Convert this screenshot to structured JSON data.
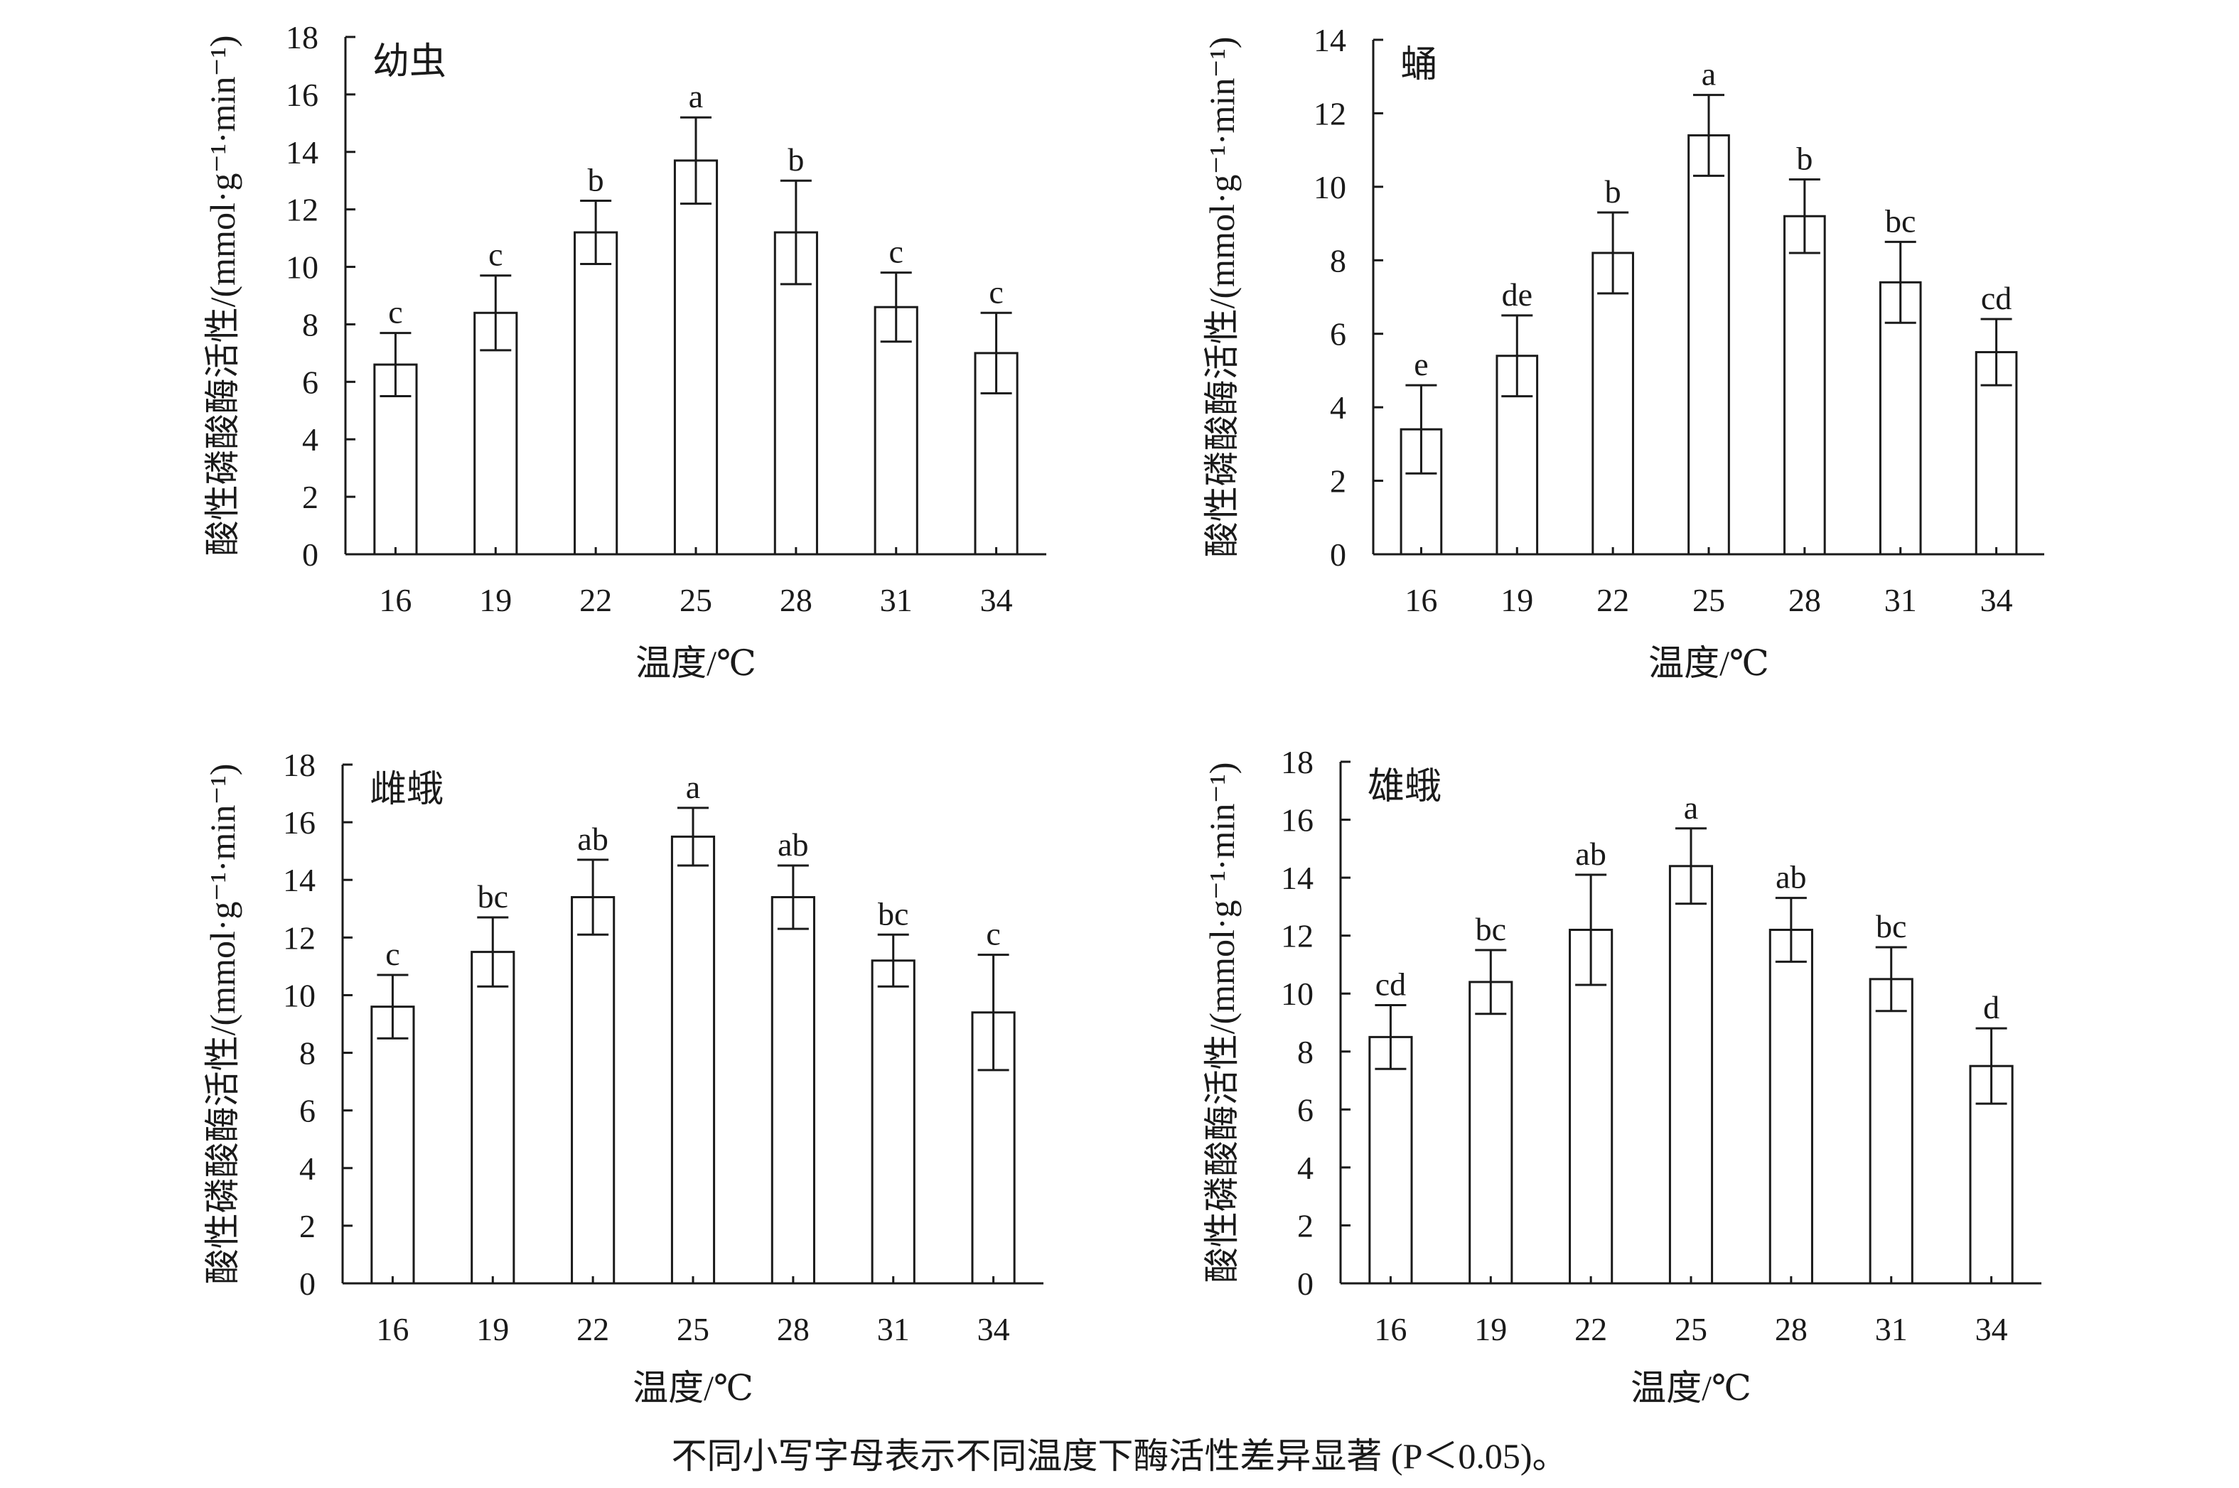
{
  "chart_data": [
    {
      "type": "bar",
      "panel_label": "幼虫",
      "categories": [
        "16",
        "19",
        "22",
        "25",
        "28",
        "31",
        "34"
      ],
      "values": [
        6.6,
        8.4,
        11.2,
        13.7,
        11.2,
        8.6,
        7.0
      ],
      "errors": [
        1.1,
        1.3,
        1.1,
        1.5,
        1.8,
        1.2,
        1.4
      ],
      "significance": [
        "c",
        "c",
        "b",
        "a",
        "b",
        "c",
        "c"
      ],
      "ylim": [
        0,
        18
      ],
      "yticks": [
        0,
        2,
        4,
        6,
        8,
        10,
        12,
        14,
        16,
        18
      ],
      "xlabel": "温度/℃",
      "ylabel": "酸性磷酸酶活性/(mmol·g⁻¹·min⁻¹)"
    },
    {
      "type": "bar",
      "panel_label": "蛹",
      "categories": [
        "16",
        "19",
        "22",
        "25",
        "28",
        "31",
        "34"
      ],
      "values": [
        3.4,
        5.4,
        8.2,
        11.4,
        9.2,
        7.4,
        5.5
      ],
      "errors": [
        1.2,
        1.1,
        1.1,
        1.1,
        1.0,
        1.1,
        0.9
      ],
      "significance": [
        "e",
        "de",
        "b",
        "a",
        "b",
        "bc",
        "cd"
      ],
      "ylim": [
        0,
        14
      ],
      "yticks": [
        0,
        2,
        4,
        6,
        8,
        10,
        12,
        14
      ],
      "xlabel": "温度/℃",
      "ylabel": "酸性磷酸酶活性/(mmol·g⁻¹·min⁻¹)"
    },
    {
      "type": "bar",
      "panel_label": "雌蛾",
      "categories": [
        "16",
        "19",
        "22",
        "25",
        "28",
        "31",
        "34"
      ],
      "values": [
        9.6,
        11.5,
        13.4,
        15.5,
        13.4,
        11.2,
        9.4
      ],
      "errors": [
        1.1,
        1.2,
        1.3,
        1.0,
        1.1,
        0.9,
        2.0
      ],
      "significance": [
        "c",
        "bc",
        "ab",
        "a",
        "ab",
        "bc",
        "c"
      ],
      "ylim": [
        0,
        18
      ],
      "yticks": [
        0,
        2,
        4,
        6,
        8,
        10,
        12,
        14,
        16,
        18
      ],
      "xlabel": "温度/℃",
      "ylabel": "酸性磷酸酶活性/(mmol·g⁻¹·min⁻¹)"
    },
    {
      "type": "bar",
      "panel_label": "雄蛾",
      "categories": [
        "16",
        "19",
        "22",
        "25",
        "28",
        "31",
        "34"
      ],
      "values": [
        8.5,
        10.4,
        12.2,
        14.4,
        12.2,
        10.5,
        7.5
      ],
      "errors": [
        1.1,
        1.1,
        1.9,
        1.3,
        1.1,
        1.1,
        1.3
      ],
      "significance": [
        "cd",
        "bc",
        "ab",
        "a",
        "ab",
        "bc",
        "d"
      ],
      "ylim": [
        0,
        18
      ],
      "yticks": [
        0,
        2,
        4,
        6,
        8,
        10,
        12,
        14,
        16,
        18
      ],
      "xlabel": "温度/℃",
      "ylabel": "酸性磷酸酶活性/(mmol·g⁻¹·min⁻¹)"
    }
  ],
  "caption": "不同小写字母表示不同温度下酶活性差异显著 (P＜0.05)。"
}
